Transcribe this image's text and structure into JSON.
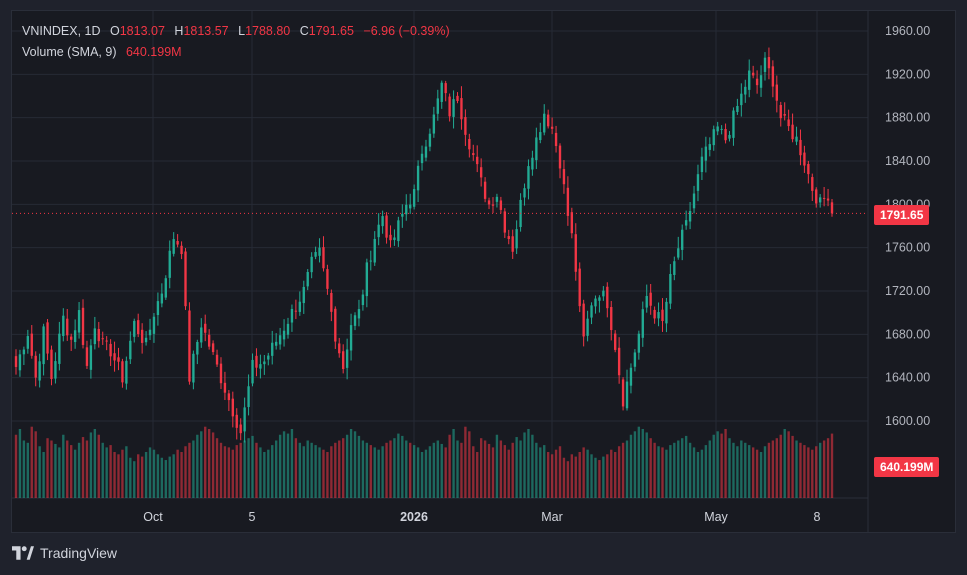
{
  "header": {
    "symbol": "VNINDEX",
    "interval": "1D",
    "open_label": "O",
    "open": "1813.07",
    "high_label": "H",
    "high": "1813.57",
    "low_label": "L",
    "low": "1788.80",
    "close_label": "C",
    "close": "1791.65",
    "change": "−6.96 (−0.39%)"
  },
  "volume_legend": {
    "label": "Volume (SMA, 9)",
    "value": "640.199M"
  },
  "price_tag": "1791.65",
  "volume_tag": "640.199M",
  "brand": "TradingView",
  "colors": {
    "up": "#22ab94",
    "down": "#f23645",
    "background": "#181a21",
    "grid": "#262a35"
  },
  "chart_data": {
    "type": "candlestick",
    "yaxis": {
      "ticks": [
        1600,
        1640,
        1680,
        1720,
        1760,
        1800,
        1840,
        1880,
        1920,
        1960
      ],
      "range": [
        1560,
        1980
      ]
    },
    "xaxis": {
      "labels": [
        "Oct",
        "5",
        "2026",
        "Mar",
        "May",
        "8"
      ]
    },
    "last_price": 1791.65,
    "anchors": [
      [
        0,
        1650
      ],
      [
        3,
        1682
      ],
      [
        5,
        1640
      ],
      [
        7,
        1682
      ],
      [
        9,
        1640
      ],
      [
        12,
        1695
      ],
      [
        14,
        1675
      ],
      [
        16,
        1700
      ],
      [
        18,
        1650
      ],
      [
        20,
        1690
      ],
      [
        22,
        1670
      ],
      [
        24,
        1665
      ],
      [
        27,
        1640
      ],
      [
        30,
        1690
      ],
      [
        33,
        1670
      ],
      [
        35,
        1700
      ],
      [
        37,
        1720
      ],
      [
        40,
        1770
      ],
      [
        42,
        1760
      ],
      [
        44,
        1640
      ],
      [
        47,
        1690
      ],
      [
        49,
        1670
      ],
      [
        52,
        1640
      ],
      [
        55,
        1610
      ],
      [
        57,
        1590
      ],
      [
        60,
        1650
      ],
      [
        63,
        1655
      ],
      [
        67,
        1680
      ],
      [
        70,
        1700
      ],
      [
        73,
        1720
      ],
      [
        75,
        1745
      ],
      [
        77,
        1755
      ],
      [
        79,
        1720
      ],
      [
        81,
        1680
      ],
      [
        83,
        1650
      ],
      [
        85,
        1690
      ],
      [
        87,
        1700
      ],
      [
        89,
        1740
      ],
      [
        91,
        1770
      ],
      [
        93,
        1790
      ],
      [
        95,
        1760
      ],
      [
        97,
        1780
      ],
      [
        99,
        1800
      ],
      [
        101,
        1810
      ],
      [
        103,
        1850
      ],
      [
        106,
        1880
      ],
      [
        108,
        1910
      ],
      [
        110,
        1885
      ],
      [
        112,
        1900
      ],
      [
        114,
        1870
      ],
      [
        116,
        1845
      ],
      [
        118,
        1820
      ],
      [
        120,
        1800
      ],
      [
        122,
        1810
      ],
      [
        124,
        1780
      ],
      [
        126,
        1760
      ],
      [
        128,
        1800
      ],
      [
        130,
        1840
      ],
      [
        132,
        1860
      ],
      [
        134,
        1885
      ],
      [
        136,
        1870
      ],
      [
        138,
        1840
      ],
      [
        140,
        1790
      ],
      [
        141,
        1770
      ],
      [
        142,
        1740
      ],
      [
        143,
        1700
      ],
      [
        144,
        1675
      ],
      [
        146,
        1710
      ],
      [
        148,
        1720
      ],
      [
        150,
        1710
      ],
      [
        152,
        1670
      ],
      [
        154,
        1620
      ],
      [
        156,
        1650
      ],
      [
        158,
        1680
      ],
      [
        160,
        1715
      ],
      [
        162,
        1700
      ],
      [
        164,
        1690
      ],
      [
        166,
        1730
      ],
      [
        168,
        1760
      ],
      [
        170,
        1780
      ],
      [
        172,
        1810
      ],
      [
        174,
        1840
      ],
      [
        176,
        1855
      ],
      [
        178,
        1870
      ],
      [
        180,
        1860
      ],
      [
        182,
        1880
      ],
      [
        184,
        1900
      ],
      [
        186,
        1920
      ],
      [
        188,
        1910
      ],
      [
        190,
        1930
      ],
      [
        192,
        1915
      ],
      [
        194,
        1880
      ],
      [
        196,
        1870
      ],
      [
        198,
        1860
      ],
      [
        200,
        1840
      ],
      [
        202,
        1815
      ],
      [
        204,
        1800
      ],
      [
        206,
        1810
      ],
      [
        207,
        1792
      ]
    ],
    "volume_pattern": [
      55,
      60,
      50,
      48,
      62,
      58,
      45,
      40,
      52,
      50,
      47,
      44,
      55,
      50,
      46,
      42,
      48,
      53,
      50,
      57,
      60,
      55,
      48,
      44,
      46,
      40,
      38,
      42,
      45,
      35,
      32,
      38,
      36,
      40,
      44,
      42,
      38,
      35,
      33,
      36,
      38,
      42,
      40,
      45,
      48,
      50,
      55,
      58,
      62,
      60,
      57,
      52,
      48,
      45,
      44,
      42,
      46,
      48,
      50,
      52,
      54,
      48,
      44,
      40,
      42,
      46,
      50,
      55,
      58,
      56,
      60,
      52,
      48,
      45,
      50,
      48,
      46,
      44,
      42,
      40,
      45,
      48,
      50,
      52,
      55,
      60,
      58,
      54,
      50,
      48,
      46,
      44,
      42,
      45,
      48,
      50,
      52,
      56,
      54,
      50,
      48,
      46,
      44,
      40,
      42,
      45,
      48,
      50,
      47,
      44
    ]
  }
}
